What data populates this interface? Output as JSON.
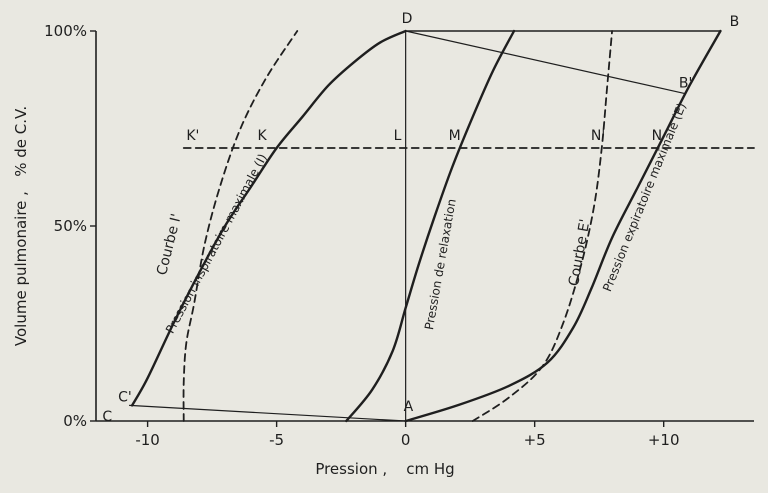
{
  "chart_data": {
    "type": "line",
    "xlabel": "Pression ,    cm Hg",
    "ylabel": "Volume pulmonaire ,   % de C.V.",
    "xlim": [
      -12,
      13.5
    ],
    "ylim": [
      0,
      100
    ],
    "x_ticks": [
      {
        "value": -10,
        "label": "-10"
      },
      {
        "value": -5,
        "label": "-5"
      },
      {
        "value": 0,
        "label": "0"
      },
      {
        "value": 5,
        "label": "+5"
      },
      {
        "value": 10,
        "label": "+10"
      }
    ],
    "y_ticks": [
      {
        "value": 0,
        "label": "0%"
      },
      {
        "value": 50,
        "label": "50%"
      },
      {
        "value": 100,
        "label": "100%"
      }
    ],
    "series": [
      {
        "key": "inspiratoire",
        "name": "Pression inspiratoire maximale (I)",
        "style": "solid",
        "x": [
          -10.6,
          -10.0,
          -9.0,
          -8.0,
          -7.0,
          -6.0,
          -5.0,
          -4.0,
          -3.0,
          -2.0,
          -1.0,
          0.0
        ],
        "y": [
          4,
          11,
          25,
          38,
          50,
          60,
          70,
          78,
          86,
          92,
          97,
          100
        ]
      },
      {
        "key": "courbe_I_prime",
        "name": "Courbe I'",
        "style": "dashed",
        "x": [
          -8.6,
          -8.6,
          -8.5,
          -8.2,
          -7.8,
          -7.2,
          -6.4,
          -5.4,
          -4.2
        ],
        "y": [
          0,
          10,
          20,
          30,
          45,
          60,
          75,
          88,
          100
        ]
      },
      {
        "key": "relaxation",
        "name": "Pression de relaxation",
        "style": "solid",
        "x": [
          -2.3,
          -1.3,
          -0.5,
          0.0,
          0.5,
          1.1,
          1.8,
          2.6,
          3.4,
          4.2
        ],
        "y": [
          0,
          8,
          18,
          29,
          40,
          52,
          65,
          78,
          90,
          100
        ]
      },
      {
        "key": "expiratoire",
        "name": "Pression expiratoire maximale (E)",
        "style": "solid",
        "x": [
          0.0,
          2.0,
          4.0,
          5.5,
          6.5,
          7.2,
          8.0,
          9.0,
          10.0,
          11.0,
          12.2
        ],
        "y": [
          0,
          4,
          9,
          15,
          24,
          34,
          47,
          60,
          73,
          86,
          100
        ]
      },
      {
        "key": "courbe_E_prime",
        "name": "Courbe E'",
        "style": "dashed",
        "x": [
          2.6,
          4.0,
          5.3,
          6.1,
          6.8,
          7.3,
          7.6,
          7.8,
          8.0
        ],
        "y": [
          0,
          6,
          14,
          25,
          40,
          55,
          70,
          85,
          100
        ]
      },
      {
        "key": "expiration_limite",
        "name": "",
        "style": "solid-thin",
        "x": [
          0,
          12.2
        ],
        "y": [
          100,
          100
        ]
      },
      {
        "key": "DB_prime",
        "name": "",
        "style": "thin",
        "x": [
          0,
          10.8
        ],
        "y": [
          100,
          84
        ]
      },
      {
        "key": "CA",
        "name": "",
        "style": "thin",
        "x": [
          -10.7,
          0
        ],
        "y": [
          4,
          0
        ]
      },
      {
        "key": "DA",
        "name": "",
        "style": "thin",
        "x": [
          0,
          0
        ],
        "y": [
          0,
          100
        ]
      },
      {
        "key": "horizontal_70",
        "name": "",
        "style": "dashed",
        "x": [
          -8.6,
          13.5
        ],
        "y": [
          70,
          70
        ]
      }
    ],
    "points": [
      {
        "label": "D",
        "x": 0,
        "y": 100,
        "dx": -4,
        "dy": -8
      },
      {
        "label": "B",
        "x": 12.4,
        "y": 100,
        "dx": 4,
        "dy": -5
      },
      {
        "label": "B'",
        "x": 10.9,
        "y": 84,
        "dx": -8,
        "dy": -6
      },
      {
        "label": "K'",
        "x": -7.8,
        "y": 70,
        "dx": -18,
        "dy": -8
      },
      {
        "label": "K",
        "x": -5.2,
        "y": 70,
        "dx": -14,
        "dy": -8
      },
      {
        "label": "L",
        "x": 0,
        "y": 70,
        "dx": -12,
        "dy": -8
      },
      {
        "label": "M",
        "x": 1.9,
        "y": 70,
        "dx": -6,
        "dy": -8
      },
      {
        "label": "N'",
        "x": 7.8,
        "y": 70,
        "dx": -16,
        "dy": -8
      },
      {
        "label": "N",
        "x": 10.0,
        "y": 70,
        "dx": -12,
        "dy": -8
      },
      {
        "label": "C'",
        "x": -10.6,
        "y": 4,
        "dx": -14,
        "dy": -4
      },
      {
        "label": "C",
        "x": -11.6,
        "y": 0,
        "dx": -4,
        "dy": 0
      },
      {
        "label": "A",
        "x": 0,
        "y": 0,
        "dx": -2,
        "dy": -10
      }
    ],
    "annotations": [
      {
        "text": "Courbe I'",
        "x": -9.0,
        "y": 45,
        "angle": -76,
        "size": "big"
      },
      {
        "text": "Pression inspiratoire maximale (I)",
        "x": -7.2,
        "y": 45,
        "angle": -62,
        "size": "small"
      },
      {
        "text": "Pression de relaxation",
        "x": 1.5,
        "y": 40,
        "angle": -80,
        "size": "small"
      },
      {
        "text": "Courbe E'",
        "x": 6.9,
        "y": 43,
        "angle": -80,
        "size": "big"
      },
      {
        "text": "Pression expiratoire maximale (E)",
        "x": 9.4,
        "y": 57,
        "angle": -68,
        "size": "small"
      }
    ]
  }
}
